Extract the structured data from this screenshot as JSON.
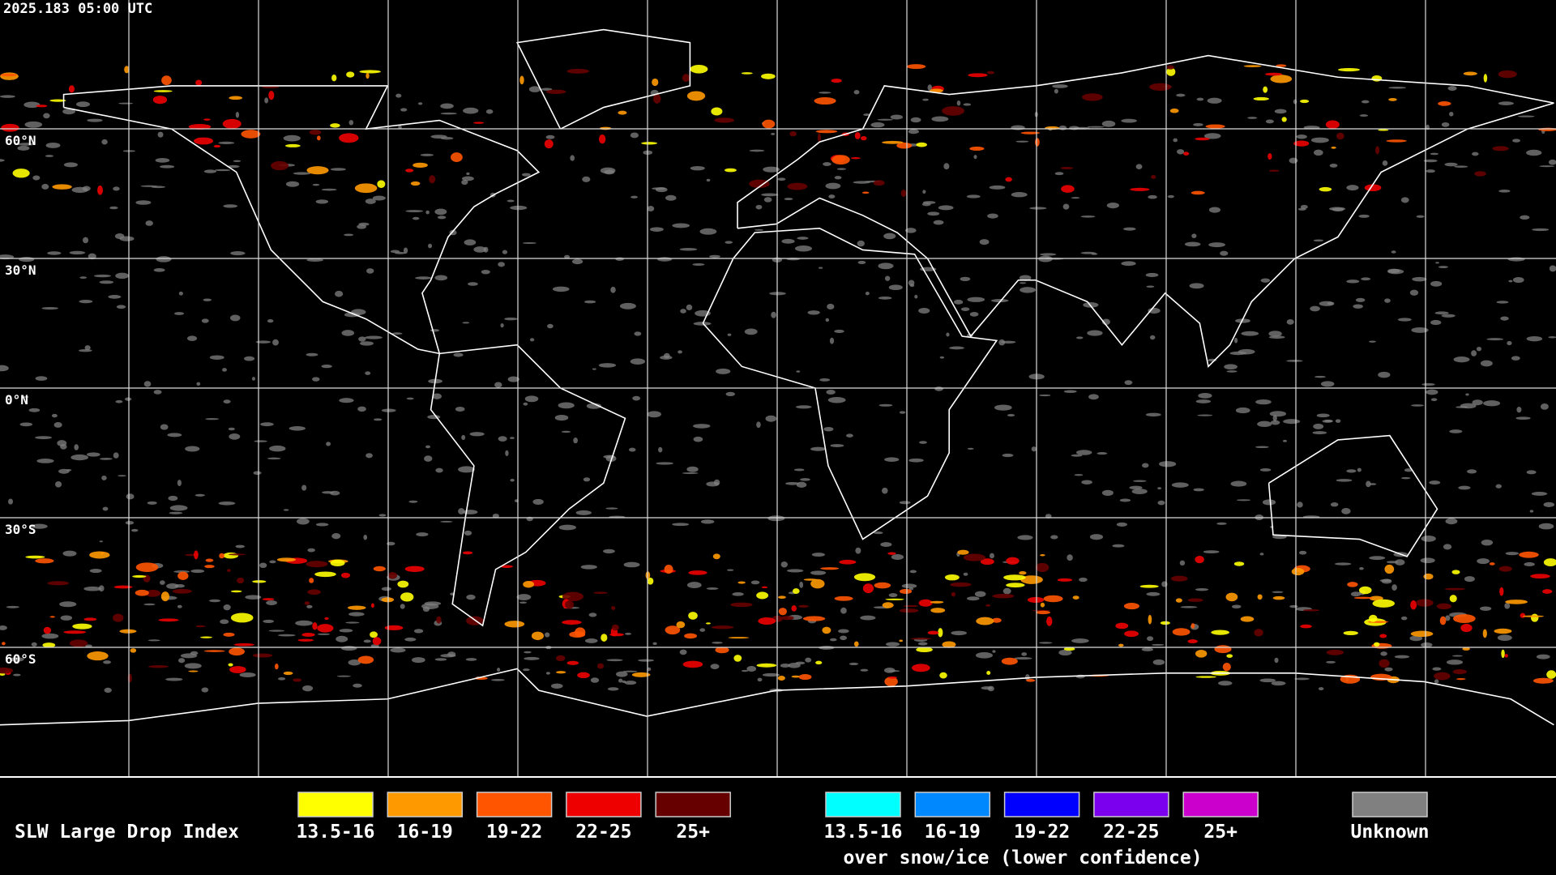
{
  "timestamp": "2025.183 05:00 UTC",
  "latitude_labels": [
    "60°N",
    "30°N",
    "0°N",
    "30°S",
    "60°S"
  ],
  "legend": {
    "title": "SLW Large Drop Index",
    "items": [
      {
        "label": "13.5-16",
        "color": "#ffff00"
      },
      {
        "label": "16-19",
        "color": "#ff9900"
      },
      {
        "label": "19-22",
        "color": "#ff5500"
      },
      {
        "label": "22-25",
        "color": "#ee0000"
      },
      {
        "label": "25+",
        "color": "#660000"
      }
    ],
    "snow_items": [
      {
        "label": "13.5-16",
        "color": "#00ffff"
      },
      {
        "label": "16-19",
        "color": "#0088ff"
      },
      {
        "label": "19-22",
        "color": "#0000ff"
      },
      {
        "label": "22-25",
        "color": "#7a00ee"
      },
      {
        "label": "25+",
        "color": "#cc00cc"
      }
    ],
    "snow_note": "over snow/ice (lower confidence)",
    "unknown": {
      "label": "Unknown",
      "color": "#808080"
    }
  }
}
